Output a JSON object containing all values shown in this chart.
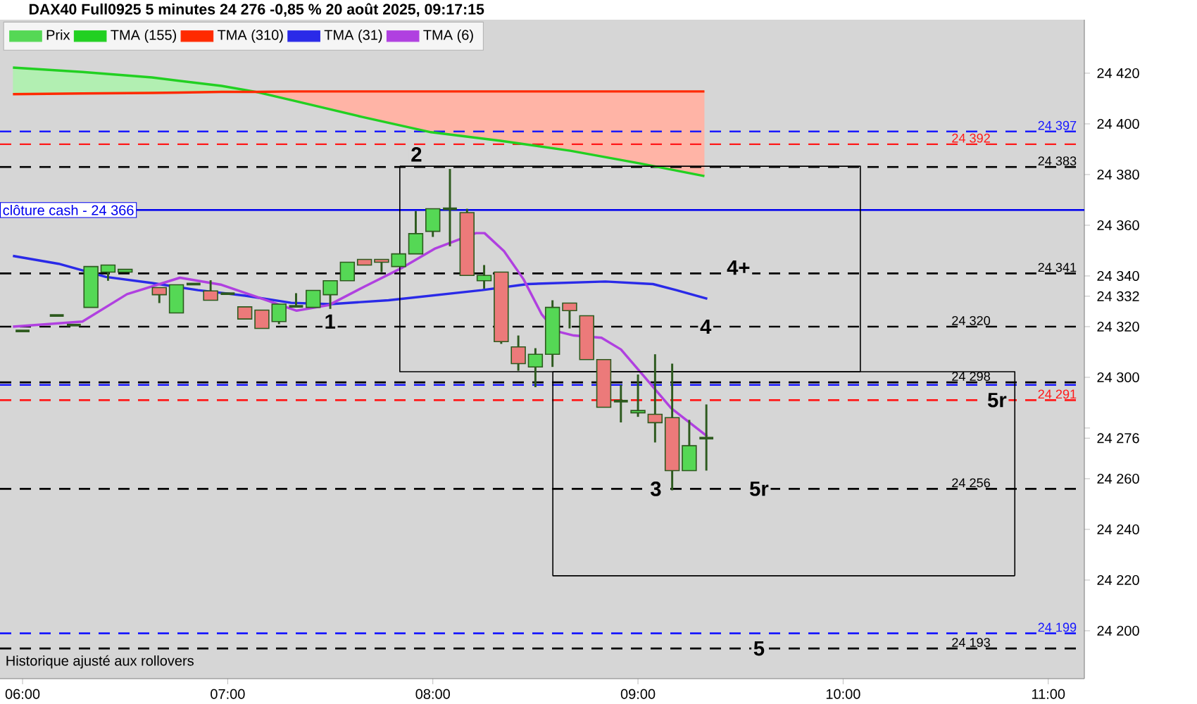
{
  "chart_data": {
    "type": "candlestick",
    "title": "DAX40 Full0925 5 minutes 24 276 -0,85 % 20 août 2025, 09:17:15",
    "legend": "top left",
    "xlim": [
      5.89,
      11.176
    ],
    "ylim": [
      24181.1,
      24441.1
    ],
    "xticks": [
      {
        "value": 6,
        "label": "06:00"
      },
      {
        "value": 7,
        "label": "07:00"
      },
      {
        "value": 8,
        "label": "08:00"
      },
      {
        "value": 9,
        "label": "09:00"
      },
      {
        "value": 10,
        "label": "10:00"
      },
      {
        "value": 11,
        "label": "11:00"
      }
    ],
    "yticks": [
      {
        "value": 24200,
        "label": "24 200"
      },
      {
        "value": 24220,
        "label": "24 220"
      },
      {
        "value": 24240,
        "label": "24 240"
      },
      {
        "value": 24260,
        "label": "24 260"
      },
      {
        "value": 24276,
        "label": "24 276"
      },
      {
        "value": 24280,
        "label": null
      },
      {
        "value": 24300,
        "label": "24 300"
      },
      {
        "value": 24320,
        "label": "24 320"
      },
      {
        "value": 24332,
        "label": "24 332"
      },
      {
        "value": 24340,
        "label": "24 340"
      },
      {
        "value": 24360,
        "label": "24 360"
      },
      {
        "value": 24380,
        "label": "24 380"
      },
      {
        "value": 24400,
        "label": "24 400"
      },
      {
        "value": 24420,
        "label": "24 420"
      }
    ],
    "series": [
      {
        "name": "Prix",
        "type": "candlestick",
        "x": [
          6.0,
          6.1667,
          6.25,
          6.3333,
          6.4167,
          6.5,
          6.6667,
          6.75,
          6.8333,
          6.9167,
          7.0,
          7.0833,
          7.1667,
          7.25,
          7.3333,
          7.4167,
          7.5,
          7.5833,
          7.6667,
          7.75,
          7.8333,
          7.9167,
          8.0,
          8.0833,
          8.1667,
          8.25,
          8.3333,
          8.4167,
          8.5,
          8.5833,
          8.6667,
          8.75,
          8.8333,
          8.9167,
          9.0,
          9.0833,
          9.1667,
          9.25,
          9.3333
        ],
        "ohlc": [
          [
            24318.3,
            24318.3,
            24318.3,
            24318.3
          ],
          [
            24324.4,
            24324.4,
            24324.4,
            24324.4
          ],
          [
            24320.6,
            24320.6,
            24320.6,
            24320.6
          ],
          [
            24327.6,
            24343.7,
            24327.6,
            24343.7
          ],
          [
            24341.5,
            24344.3,
            24338.1,
            24344.3
          ],
          [
            24341.5,
            24342.6,
            24341.5,
            24342.6
          ],
          [
            24335.4,
            24335.4,
            24329.3,
            24332.6
          ],
          [
            24325.4,
            24336.5,
            24325.4,
            24336.5
          ],
          [
            24336.8,
            24336.8,
            24336.8,
            24336.8
          ],
          [
            24334.1,
            24338.3,
            24330.4,
            24330.4
          ],
          [
            24333.0,
            24333.0,
            24333.0,
            24333.0
          ],
          [
            24327.8,
            24327.8,
            24323.0,
            24323.0
          ],
          [
            24326.5,
            24326.5,
            24319.3,
            24319.3
          ],
          [
            24322.0,
            24328.9,
            24321.0,
            24328.9
          ],
          [
            24328.0,
            24333.2,
            24328.0,
            24328.0
          ],
          [
            24327.6,
            24334.3,
            24327.6,
            24334.3
          ],
          [
            24332.6,
            24338.1,
            24327.0,
            24338.1
          ],
          [
            24338.1,
            24345.4,
            24338.1,
            24345.4
          ],
          [
            24346.5,
            24346.5,
            24344.3,
            24344.3
          ],
          [
            24346.5,
            24346.5,
            24341.5,
            24345.4
          ],
          [
            24343.7,
            24348.7,
            24343.7,
            24348.7
          ],
          [
            24348.7,
            24365.6,
            24348.7,
            24356.7
          ],
          [
            24357.6,
            24366.5,
            24355.4,
            24366.5
          ],
          [
            24366.5,
            24382.2,
            24351.7,
            24366.5
          ],
          [
            24365.0,
            24366.5,
            24340.2,
            24340.2
          ],
          [
            24338.1,
            24344.3,
            24335.0,
            24340.2
          ],
          [
            24341.5,
            24341.5,
            24313.2,
            24314.1
          ],
          [
            24312.0,
            24316.5,
            24302.6,
            24305.4
          ],
          [
            24304.1,
            24311.5,
            24296.1,
            24309.1
          ],
          [
            24309.1,
            24330.4,
            24304.1,
            24327.6
          ],
          [
            24329.3,
            24329.3,
            24319.3,
            24326.3
          ],
          [
            24324.3,
            24324.3,
            24307.0,
            24307.0
          ],
          [
            24307.0,
            24307.0,
            24288.2,
            24288.2
          ],
          [
            24290.6,
            24297.0,
            24282.2,
            24290.6
          ],
          [
            24286.0,
            24301.1,
            24284.4,
            24286.9
          ],
          [
            24285.4,
            24309.1,
            24274.3,
            24282.1
          ],
          [
            24284.1,
            24305.4,
            24255.4,
            24263.2
          ],
          [
            24263.2,
            24283.2,
            24263.2,
            24273.0
          ],
          [
            24276.0,
            24289.3,
            24263.2,
            24276.0
          ]
        ],
        "colors": [
          "#2d5a1e",
          "#2d5a1e",
          "#2d5a1e",
          "#55d855",
          "#55d855",
          "#55d855",
          "#ec7a7a",
          "#55d855",
          "#2d5a1e",
          "#ec7a7a",
          "#2d5a1e",
          "#ec7a7a",
          "#ec7a7a",
          "#55d855",
          "#2d5a1e",
          "#55d855",
          "#55d855",
          "#55d855",
          "#ec7a7a",
          "#ec7a7a",
          "#55d855",
          "#55d855",
          "#55d855",
          "#2d5a1e",
          "#ec7a7a",
          "#55d855",
          "#ec7a7a",
          "#ec7a7a",
          "#55d855",
          "#55d855",
          "#ec7a7a",
          "#ec7a7a",
          "#ec7a7a",
          "#2d5a1e",
          "#55d855",
          "#ec7a7a",
          "#ec7a7a",
          "#55d855",
          "#2d5a1e"
        ]
      },
      {
        "name": "TMA (155)",
        "type": "line",
        "color": "#22d022",
        "x": [
          5.953,
          6.292,
          6.631,
          6.97,
          7.14,
          7.309,
          7.652,
          7.991,
          8.33,
          8.67,
          9.009,
          9.324
        ],
        "values": [
          24422.2,
          24420.5,
          24418.3,
          24415.0,
          24412.6,
          24409.4,
          24402.8,
          24396.7,
          24393.3,
          24389.4,
          24384.4,
          24379.4
        ],
        "lower": [
          24411.7,
          24412.0,
          24412.2,
          24412.6,
          24412.6,
          null,
          null,
          null,
          null,
          null,
          null,
          null
        ],
        "upper": [
          24422.2,
          24420.5,
          24418.3,
          24415.0,
          24412.6,
          null,
          null,
          null,
          null,
          null,
          null,
          null
        ]
      },
      {
        "name": "TMA (310)",
        "type": "line",
        "color": "#ff2a00",
        "x": [
          5.953,
          6.292,
          6.631,
          6.97,
          7.14,
          7.309,
          7.652,
          7.991,
          8.33,
          8.67,
          9.009,
          9.324
        ],
        "values": [
          24411.7,
          24412.0,
          24412.2,
          24412.6,
          24412.6,
          24412.8,
          24412.8,
          24412.8,
          24412.8,
          24412.8,
          24412.8,
          24412.8
        ],
        "lower": [
          null,
          null,
          null,
          null,
          24412.6,
          24409.4,
          24402.8,
          24396.7,
          24393.3,
          24389.4,
          24384.4,
          24379.4
        ],
        "upper": [
          null,
          null,
          null,
          null,
          24412.6,
          24412.8,
          24412.8,
          24412.8,
          24412.8,
          24412.8,
          24412.8,
          24412.8
        ]
      },
      {
        "name": "TMA (31)",
        "type": "line",
        "color": "#2a2ae8",
        "x": [
          5.953,
          6.176,
          6.407,
          6.631,
          6.855,
          7.085,
          7.309,
          7.499,
          7.784,
          8.239,
          8.463,
          8.841,
          9.073,
          9.187,
          9.338
        ],
        "values": [
          24347.9,
          24344.8,
          24339.6,
          24337.2,
          24334.4,
          24332.2,
          24329.4,
          24328.9,
          24330.4,
          24334.4,
          24336.8,
          24337.8,
          24336.8,
          24334.4,
          24331.0
        ]
      },
      {
        "name": "TMA (6)",
        "type": "line",
        "color": "#b040e0",
        "x": [
          5.953,
          6.292,
          6.509,
          6.767,
          6.97,
          7.126,
          7.336,
          7.493,
          7.669,
          7.852,
          8.008,
          8.21,
          8.252,
          8.347,
          8.442,
          8.531,
          8.598,
          8.687,
          8.822,
          8.917,
          9.026,
          9.162,
          9.338
        ],
        "values": [
          24320.0,
          24322.0,
          24332.8,
          24339.3,
          24336.5,
          24332.2,
          24326.3,
          24328.5,
          24335.9,
          24343.3,
          24350.7,
          24356.9,
          24356.9,
          24349.8,
          24338.7,
          24324.8,
          24318.3,
          24316.5,
          24315.6,
          24311.0,
          24300.7,
          24287.8,
          24276.7
        ]
      },
      {
        "type": "line",
        "color": "#000000",
        "line_style": "solid",
        "x": [
          7.839,
          10.084,
          10.084,
          null,
          10.084,
          7.839,
          7.839
        ],
        "values": [
          24383.3,
          24383.3,
          24302.2,
          null,
          24302.2,
          24302.2,
          24383.3
        ]
      },
      {
        "type": "line",
        "color": "#000000",
        "line_style": "solid",
        "x": [
          8.585,
          10.837,
          10.837,
          null,
          10.837,
          8.585,
          8.585
        ],
        "values": [
          24302.2,
          24302.2,
          24221.7,
          null,
          24221.7,
          24221.7,
          24302.2
        ]
      }
    ],
    "ref_lines": [
      {
        "axis": "y",
        "value": 24397,
        "label": "24 397",
        "color": "#1a1aff",
        "line_style": "dashed"
      },
      {
        "axis": "y",
        "value": 24392,
        "label": "24 392",
        "color": "#ff1a1a",
        "line_style": "dashed"
      },
      {
        "axis": "y",
        "value": 24383,
        "label": "24 383",
        "color": "#000000",
        "line_style": "dashed"
      },
      {
        "axis": "y",
        "value": 24366,
        "label": "clôture cash -  24 366",
        "color": "#0000ee",
        "line_style": "solid"
      },
      {
        "axis": "y",
        "value": 24341,
        "label": "24 341",
        "color": "#000000",
        "line_style": "dashed"
      },
      {
        "axis": "y",
        "value": 24320,
        "label": "24 320",
        "color": "#000000",
        "line_style": "dashed"
      },
      {
        "axis": "y",
        "value": 24297,
        "color": "#1a1aff",
        "line_style": "dashed"
      },
      {
        "axis": "y",
        "value": 24298,
        "label": "24 298",
        "color": "#000000",
        "line_style": "dashed"
      },
      {
        "axis": "y",
        "value": 24291,
        "label": "24 291",
        "color": "#ff1a1a",
        "line_style": "dashed"
      },
      {
        "axis": "y",
        "value": 24256,
        "label": "24 256",
        "color": "#000000",
        "line_style": "dashed"
      },
      {
        "axis": "y",
        "value": 24199,
        "label": "24 199",
        "color": "#1a1aff",
        "line_style": "dashed"
      },
      {
        "axis": "y",
        "value": 24193,
        "label": "24 193",
        "color": "#000000",
        "line_style": "dashed"
      }
    ],
    "annotations": [
      "Historique ajusté aux rollovers",
      {
        "text": "1",
        "x": 7.499,
        "y": 24322
      },
      {
        "text": "2",
        "x": 7.92,
        "y": 24388
      },
      {
        "text": "3",
        "x": 9.087,
        "y": 24256
      },
      {
        "text": "4",
        "x": 9.33,
        "y": 24320
      },
      {
        "text": "4+",
        "x": 9.49,
        "y": 24343.3
      },
      {
        "text": "5r",
        "x": 9.59,
        "y": 24256
      },
      {
        "text": "5r",
        "x": 10.75,
        "y": 24291
      },
      {
        "text": "5",
        "x": 9.59,
        "y": 24193
      }
    ]
  }
}
